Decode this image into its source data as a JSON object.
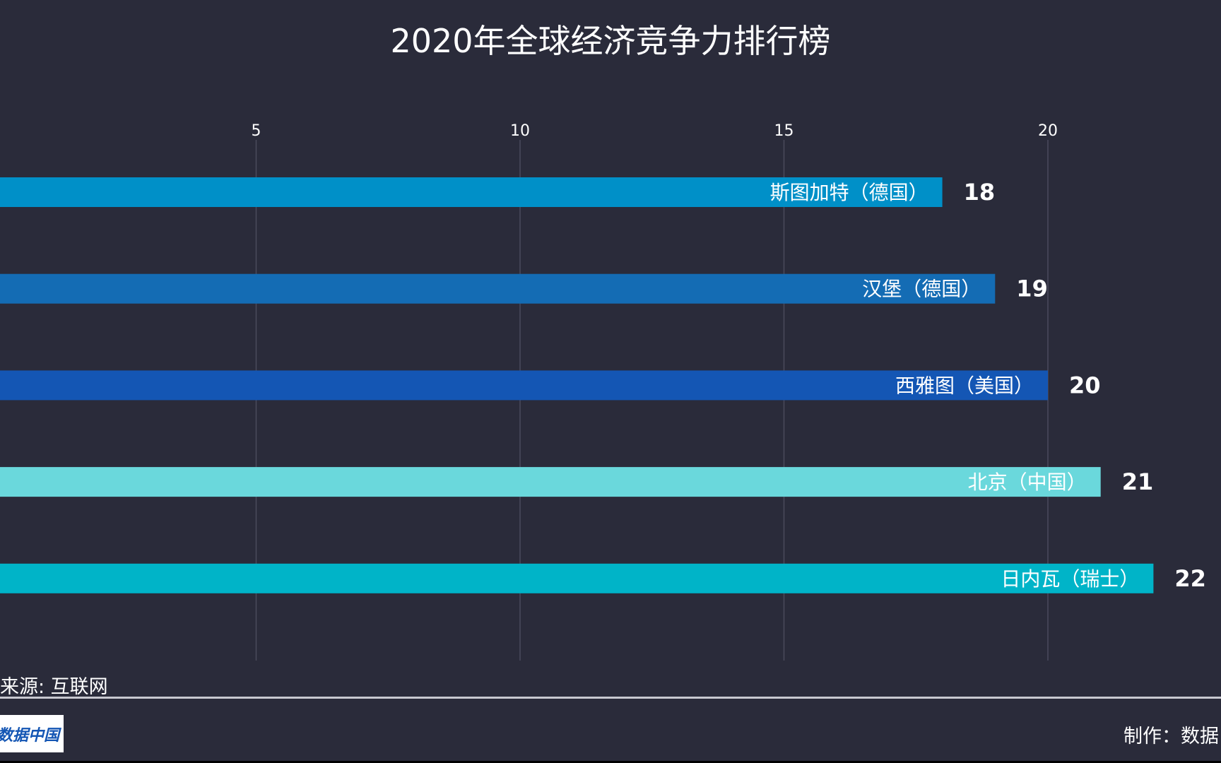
{
  "chart_data": {
    "type": "bar",
    "orientation": "horizontal",
    "title": "2020年全球经济竞争力排行榜",
    "categories": [
      "斯图加特（德国）",
      "汉堡（德国）",
      "西雅图（美国）",
      "北京（中国）",
      "日内瓦（瑞士）"
    ],
    "values": [
      18,
      19,
      20,
      21,
      22
    ],
    "colors": [
      "#0090c8",
      "#146cb4",
      "#1456b4",
      "#6ad8dc",
      "#00b4c8"
    ],
    "xticks": [
      5,
      10,
      15,
      20
    ],
    "grid": true,
    "xlabel": "",
    "ylabel": ""
  },
  "footer": {
    "source": "来源: 互联网",
    "logo_text": "数据中国",
    "credit": "制作：数据"
  },
  "colors": {
    "background": "#2a2b3a",
    "grid": "#4a4b5c"
  }
}
